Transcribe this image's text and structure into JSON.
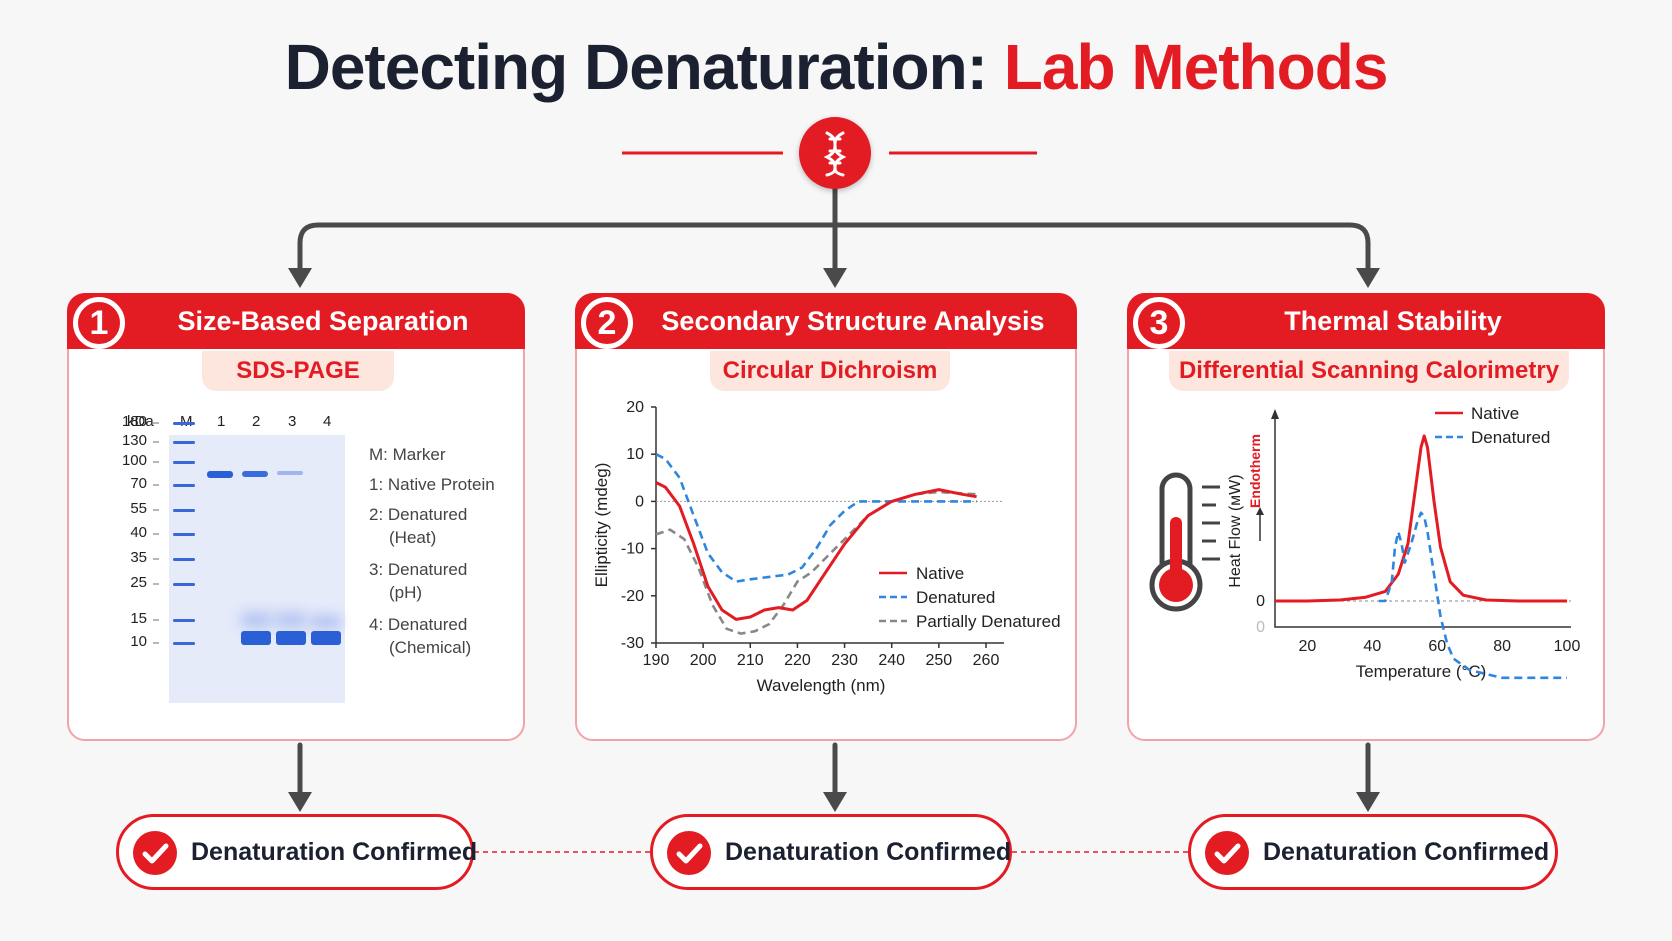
{
  "title": {
    "part1": "Detecting Denaturation: ",
    "part2": "Lab Methods"
  },
  "colors": {
    "accent": "#e31b23",
    "dark": "#1b2130",
    "native": "#e31b23",
    "denatured": "#2e86de",
    "partial": "#888888"
  },
  "center_icon": "dna-helix-icon",
  "panels": [
    {
      "num": "1",
      "title": "Size-Based Separation",
      "method": "SDS-PAGE",
      "gel": {
        "unit_label": "kDa",
        "lane_labels": [
          "M",
          "1",
          "2",
          "3",
          "4"
        ],
        "mw_ladder": [
          "180",
          "130",
          "100",
          "70",
          "55",
          "40",
          "35",
          "25",
          "15",
          "10"
        ],
        "legend": [
          "M: Marker",
          "1: Native Protein",
          "2: Denatured",
          "(Heat)",
          "3: Denatured",
          "(pH)",
          "4: Denatured",
          "(Chemical)"
        ]
      }
    },
    {
      "num": "2",
      "title": "Secondary Structure Analysis",
      "method": "Circular Dichroism"
    },
    {
      "num": "3",
      "title": "Thermal Stability",
      "method": "Differential Scanning Calorimetry"
    }
  ],
  "confirmations": [
    "Denaturation Confirmed",
    "Denaturation Confirmed",
    "Denaturation Confirmed"
  ],
  "chart_data": [
    {
      "type": "line",
      "title": "",
      "xlabel": "Wavelength (nm)",
      "ylabel": "Ellipticity (mdeg)",
      "xlim": [
        190,
        260
      ],
      "ylim": [
        -30,
        20
      ],
      "xticks": [
        "190",
        "200",
        "210",
        "220",
        "230",
        "240",
        "250",
        "260"
      ],
      "yticks": [
        "20",
        "10",
        "0",
        "-10",
        "-20",
        "-30"
      ],
      "legend_position": "bottom-right",
      "series": [
        {
          "name": "Native",
          "style": "solid",
          "color": "#e31b23",
          "x": [
            190,
            192,
            195,
            198,
            201,
            204,
            207,
            210,
            213,
            216,
            219,
            222,
            226,
            230,
            235,
            240,
            245,
            250,
            255,
            258
          ],
          "y": [
            4,
            3,
            -1,
            -9,
            -18,
            -23,
            -25,
            -24.5,
            -23,
            -22.5,
            -23,
            -21,
            -15,
            -9,
            -3,
            0,
            1.5,
            2.5,
            1.5,
            1
          ]
        },
        {
          "name": "Denatured",
          "style": "dashed",
          "color": "#2e86de",
          "x": [
            190,
            192,
            195,
            198,
            201,
            204,
            207,
            210,
            214,
            218,
            221,
            224,
            227,
            230,
            233,
            240,
            250,
            258
          ],
          "y": [
            10,
            9,
            5,
            -3,
            -11,
            -15,
            -17,
            -16.5,
            -16,
            -15.5,
            -14,
            -10,
            -5,
            -2,
            0,
            0,
            0,
            0
          ]
        },
        {
          "name": "Partially Denatured",
          "style": "dashed",
          "color": "#888888",
          "x": [
            190,
            193,
            196,
            199,
            202,
            205,
            208,
            211,
            214,
            217,
            220,
            223,
            226,
            230,
            235,
            240,
            245,
            250,
            258
          ],
          "y": [
            -7,
            -6,
            -8,
            -14,
            -22,
            -27,
            -28,
            -27.5,
            -26,
            -22,
            -17,
            -15,
            -12,
            -8,
            -3,
            0,
            1.5,
            2,
            1.5
          ]
        }
      ]
    },
    {
      "type": "line",
      "title": "",
      "xlabel": "Temperature (°C)",
      "ylabel": "Heat Flow (мW)",
      "side_label": "Endotherm",
      "xlim": [
        10,
        100
      ],
      "xticks": [
        "20",
        "40",
        "60",
        "80",
        "100"
      ],
      "yticks": [
        "0",
        "0"
      ],
      "legend_position": "top-right",
      "series": [
        {
          "name": "Native",
          "style": "solid",
          "color": "#e31b23",
          "x": [
            10,
            20,
            30,
            38,
            44,
            48,
            51,
            53,
            55,
            56,
            57,
            59,
            61,
            64,
            68,
            75,
            85,
            100
          ],
          "y": [
            0,
            0,
            0.5,
            2,
            5,
            14,
            30,
            55,
            80,
            86,
            80,
            52,
            28,
            10,
            3,
            0.5,
            0,
            0
          ]
        },
        {
          "name": "Denatured",
          "style": "dashed",
          "color": "#2e86de",
          "x": [
            42,
            44,
            46,
            47,
            48,
            49,
            50,
            52,
            54,
            55,
            56,
            57,
            59,
            61,
            63,
            65,
            70,
            80,
            100
          ],
          "y": [
            0,
            0,
            10,
            28,
            36,
            30,
            20,
            30,
            42,
            46,
            44,
            36,
            14,
            -8,
            -22,
            -30,
            -36,
            -40,
            -40
          ]
        }
      ]
    }
  ]
}
